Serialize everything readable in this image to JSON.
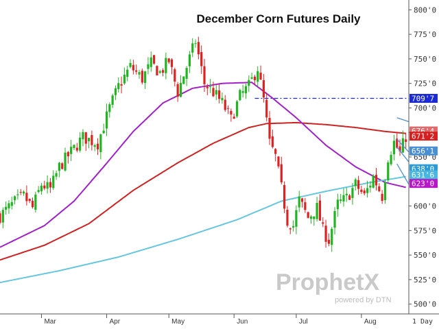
{
  "chart_data": {
    "type": "candlestick",
    "title": "December Corn Futures Daily",
    "period_label": "1 Day",
    "y_range": [
      490,
      810
    ],
    "y_ticks": [
      {
        "value": 800,
        "label": "800'0"
      },
      {
        "value": 775,
        "label": "775'0"
      },
      {
        "value": 750,
        "label": "750'0"
      },
      {
        "value": 725,
        "label": "725'0"
      },
      {
        "value": 700,
        "label": "700'0"
      },
      {
        "value": 675,
        "label": "675'0"
      },
      {
        "value": 650,
        "label": "650'0"
      },
      {
        "value": 625,
        "label": "625'0"
      },
      {
        "value": 600,
        "label": "600'0"
      },
      {
        "value": 575,
        "label": "575'0"
      },
      {
        "value": 550,
        "label": "550'0"
      },
      {
        "value": 525,
        "label": "525'0"
      },
      {
        "value": 500,
        "label": "500'0"
      }
    ],
    "x_range": [
      0,
      138
    ],
    "months": [
      {
        "label": "Mar",
        "index": 14
      },
      {
        "label": "Apr",
        "index": 36
      },
      {
        "label": "May",
        "index": 57
      },
      {
        "label": "Jun",
        "index": 79
      },
      {
        "label": "Jul",
        "index": 100
      },
      {
        "label": "Aug",
        "index": 122
      }
    ],
    "close_path": [
      [
        0,
        590
      ],
      [
        5,
        604
      ],
      [
        8,
        610
      ],
      [
        11,
        598
      ],
      [
        14,
        622
      ],
      [
        17,
        617
      ],
      [
        20,
        640
      ],
      [
        24,
        655
      ],
      [
        28,
        670
      ],
      [
        33,
        664
      ],
      [
        37,
        700
      ],
      [
        40,
        722
      ],
      [
        44,
        742
      ],
      [
        48,
        730
      ],
      [
        51,
        745
      ],
      [
        54,
        736
      ],
      [
        57,
        748
      ],
      [
        60,
        716
      ],
      [
        63,
        742
      ],
      [
        66,
        768
      ],
      [
        69,
        725
      ],
      [
        72,
        716
      ],
      [
        75,
        705
      ],
      [
        78,
        688
      ],
      [
        81,
        712
      ],
      [
        84,
        722
      ],
      [
        87,
        741
      ],
      [
        89,
        708
      ],
      [
        91,
        664
      ],
      [
        93,
        650
      ],
      [
        95,
        618
      ],
      [
        97,
        585
      ],
      [
        99,
        580
      ],
      [
        101,
        606
      ],
      [
        104,
        588
      ],
      [
        107,
        598
      ],
      [
        109,
        575
      ],
      [
        111,
        565
      ],
      [
        114,
        602
      ],
      [
        117,
        608
      ],
      [
        120,
        622
      ],
      [
        123,
        610
      ],
      [
        126,
        630
      ],
      [
        129,
        610
      ],
      [
        131,
        650
      ],
      [
        133,
        665
      ],
      [
        135,
        654
      ],
      [
        137,
        671
      ]
    ],
    "moving_averages": [
      {
        "color": "#cc2222",
        "points": [
          [
            0,
            545
          ],
          [
            15,
            560
          ],
          [
            30,
            582
          ],
          [
            45,
            616
          ],
          [
            60,
            644
          ],
          [
            72,
            664
          ],
          [
            84,
            680
          ],
          [
            90,
            684
          ],
          [
            100,
            685
          ],
          [
            110,
            683
          ],
          [
            120,
            680
          ],
          [
            130,
            676
          ],
          [
            137,
            674
          ]
        ]
      },
      {
        "color": "#a020c8",
        "points": [
          [
            0,
            558
          ],
          [
            15,
            580
          ],
          [
            25,
            605
          ],
          [
            35,
            640
          ],
          [
            45,
            676
          ],
          [
            55,
            705
          ],
          [
            65,
            720
          ],
          [
            75,
            725
          ],
          [
            85,
            726
          ],
          [
            92,
            710
          ],
          [
            100,
            690
          ],
          [
            110,
            662
          ],
          [
            120,
            640
          ],
          [
            130,
            624
          ],
          [
            137,
            619
          ]
        ]
      },
      {
        "color": "#66c6de",
        "points": [
          [
            0,
            522
          ],
          [
            20,
            534
          ],
          [
            40,
            548
          ],
          [
            60,
            566
          ],
          [
            80,
            586
          ],
          [
            95,
            605
          ],
          [
            110,
            615
          ],
          [
            125,
            624
          ],
          [
            137,
            630
          ]
        ]
      }
    ],
    "reference_line": {
      "value": 709.75,
      "color": "#1a2bd4"
    },
    "trend_lines": [
      {
        "points": [
          [
            134,
            660
          ],
          [
            138,
            645
          ]
        ],
        "color": "#4a8fd4"
      },
      {
        "points": [
          [
            134,
            668
          ],
          [
            138,
            655
          ]
        ],
        "color": "#4a8fd4"
      },
      {
        "points": [
          [
            134,
            690
          ],
          [
            138,
            686
          ]
        ],
        "color": "#4a8fd4"
      },
      {
        "points": [
          [
            134,
            643
          ],
          [
            138,
            622
          ]
        ],
        "color": "#4a8fd4"
      }
    ],
    "price_badges": [
      {
        "label": "709'7",
        "value": 709.75,
        "color": "#1a2bd4"
      },
      {
        "label": "676'4",
        "value": 676.5,
        "color": "#e06a6a"
      },
      {
        "label": "671'2",
        "value": 671.25,
        "color": "#d42020"
      },
      {
        "label": "656'1",
        "value": 656.125,
        "color": "#4a8fd4"
      },
      {
        "label": "638'0",
        "value": 638,
        "color": "#2a9bd4"
      },
      {
        "label": "631'6",
        "value": 631.75,
        "color": "#4ab7e0"
      },
      {
        "label": "623'0",
        "value": 623,
        "color": "#b818c8"
      }
    ],
    "watermark": {
      "main": "ProphetX",
      "sub": "powered by DTN"
    }
  }
}
